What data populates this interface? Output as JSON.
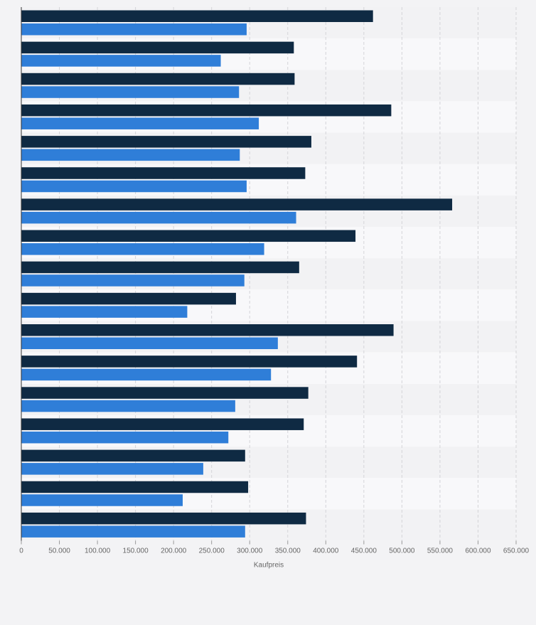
{
  "chart_data": {
    "type": "bar",
    "orientation": "horizontal",
    "title": "",
    "xlabel": "Kaufpreis",
    "ylabel": "",
    "xlim": [
      0,
      650000
    ],
    "x_ticks": [
      "0",
      "50.000",
      "100.000",
      "150.000",
      "200.000",
      "250.000",
      "300.000",
      "350.000",
      "400.000",
      "450.000",
      "500.000",
      "550.000",
      "600.000",
      "650.000"
    ],
    "x_tick_values": [
      0,
      50000,
      100000,
      150000,
      200000,
      250000,
      300000,
      350000,
      400000,
      450000,
      500000,
      550000,
      600000,
      650000
    ],
    "grid": "vertical dashed",
    "legend": "none",
    "categories": [
      "",
      "",
      "",
      "",
      "",
      "",
      "",
      "",
      "",
      "",
      "",
      "",
      "",
      "",
      "",
      "",
      ""
    ],
    "series": [
      {
        "color": "#0f2a43",
        "values": [
          462000,
          358000,
          359000,
          486000,
          381000,
          373000,
          566000,
          439000,
          365000,
          282000,
          489000,
          441000,
          377000,
          371000,
          294000,
          298000,
          374000
        ]
      },
      {
        "color": "#2f7ed8",
        "values": [
          296000,
          262000,
          286000,
          312000,
          287000,
          296000,
          361000,
          319000,
          293000,
          218000,
          337000,
          328000,
          281000,
          272000,
          239000,
          212000,
          294000
        ]
      }
    ]
  }
}
